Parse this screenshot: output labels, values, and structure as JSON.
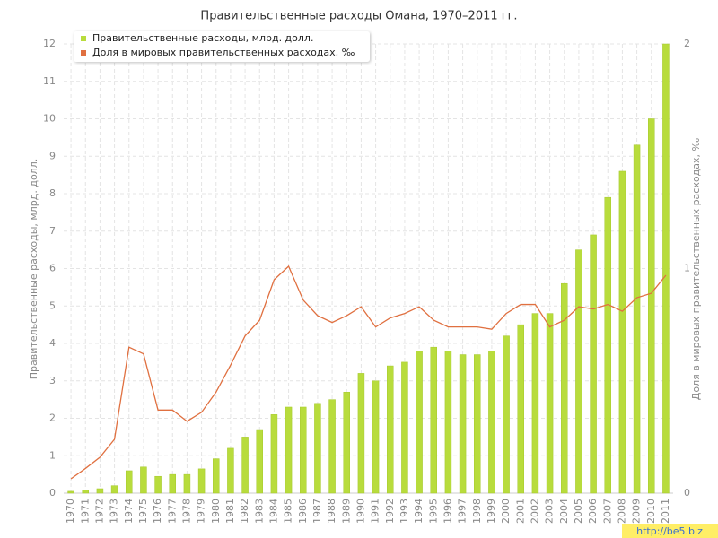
{
  "chart_data": {
    "type": "bar",
    "title": "Правительственные расходы Омана, 1970–2011 гг.",
    "y_label": "Правительственные расходы, млрд. долл.",
    "y2_label": "Доля в мировых правительственных расходах, ‰",
    "categories": [
      "1970",
      "1971",
      "1972",
      "1973",
      "1974",
      "1975",
      "1976",
      "1977",
      "1978",
      "1979",
      "1980",
      "1981",
      "1982",
      "1983",
      "1984",
      "1985",
      "1986",
      "1987",
      "1988",
      "1989",
      "1990",
      "1991",
      "1992",
      "1993",
      "1994",
      "1995",
      "1996",
      "1997",
      "1998",
      "1999",
      "2000",
      "2001",
      "2002",
      "2003",
      "2004",
      "2005",
      "2006",
      "2007",
      "2008",
      "2009",
      "2010",
      "2011"
    ],
    "series": [
      {
        "name": "Правительственные расходы, млрд. долл.",
        "color": "#b8dc3c",
        "type": "bar",
        "values": [
          0.05,
          0.08,
          0.12,
          0.2,
          0.6,
          0.7,
          0.45,
          0.5,
          0.5,
          0.65,
          0.92,
          1.2,
          1.5,
          1.7,
          2.1,
          2.3,
          2.3,
          2.4,
          2.5,
          2.7,
          3.2,
          3.0,
          3.4,
          3.5,
          3.8,
          3.9,
          3.8,
          3.7,
          3.7,
          3.8,
          4.2,
          4.5,
          4.8,
          4.8,
          5.6,
          6.5,
          6.9,
          7.9,
          8.6,
          9.3,
          10.0,
          12.0
        ]
      },
      {
        "name": "Доля в мировых правительственных расходах, ‰",
        "color": "#e07040",
        "type": "line",
        "axis": "y2",
        "values": [
          0.064,
          0.11,
          0.16,
          0.24,
          0.65,
          0.62,
          0.37,
          0.37,
          0.32,
          0.36,
          0.45,
          0.57,
          0.7,
          0.77,
          0.95,
          1.01,
          0.86,
          0.79,
          0.76,
          0.79,
          0.83,
          0.74,
          0.78,
          0.8,
          0.83,
          0.77,
          0.74,
          0.74,
          0.74,
          0.73,
          0.8,
          0.84,
          0.84,
          0.74,
          0.77,
          0.83,
          0.82,
          0.84,
          0.81,
          0.87,
          0.89,
          0.97
        ]
      }
    ],
    "ylim": [
      0,
      12
    ],
    "yticks": [
      0,
      1,
      2,
      3,
      4,
      5,
      6,
      7,
      8,
      9,
      10,
      11,
      12
    ],
    "y2lim": [
      0,
      2
    ],
    "y2ticks": [
      0,
      1,
      2
    ],
    "grid": true,
    "legend": "top-left"
  },
  "watermark": "http://be5.biz"
}
